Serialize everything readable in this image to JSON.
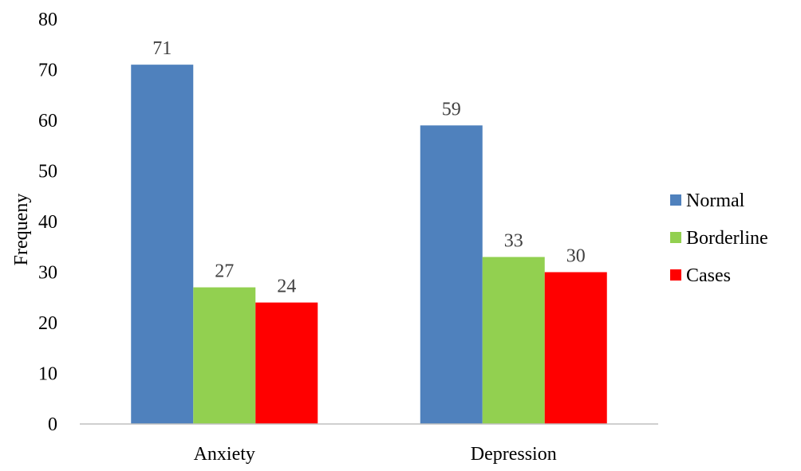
{
  "chart_data": {
    "type": "bar",
    "categories": [
      "Anxiety",
      "Depression"
    ],
    "series": [
      {
        "name": "Normal",
        "values": [
          71,
          59
        ],
        "color": "#4F81BD"
      },
      {
        "name": "Borderline",
        "values": [
          27,
          33
        ],
        "color": "#92D050"
      },
      {
        "name": "Cases",
        "values": [
          24,
          30
        ],
        "color": "#FF0000"
      }
    ],
    "title": "",
    "xlabel": "",
    "ylabel": "Frequeny",
    "ylim": [
      0,
      80
    ],
    "yticks": [
      0,
      10,
      20,
      30,
      40,
      50,
      60,
      70,
      80
    ],
    "grid": false,
    "legend_position": "right",
    "data_labels": true
  }
}
